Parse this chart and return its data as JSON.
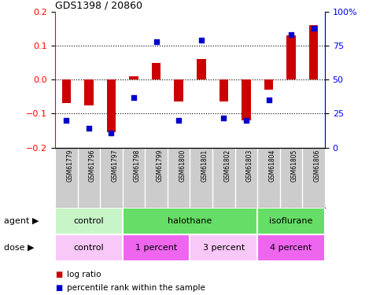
{
  "title": "GDS1398 / 20860",
  "samples": [
    "GSM61779",
    "GSM61796",
    "GSM61797",
    "GSM61798",
    "GSM61799",
    "GSM61800",
    "GSM61801",
    "GSM61802",
    "GSM61803",
    "GSM61804",
    "GSM61805",
    "GSM61806"
  ],
  "log_ratio": [
    -0.068,
    -0.075,
    -0.155,
    0.01,
    0.05,
    -0.065,
    0.06,
    -0.065,
    -0.12,
    -0.03,
    0.13,
    0.16
  ],
  "percentile_rank": [
    20,
    14,
    11,
    37,
    78,
    20,
    79,
    22,
    20,
    35,
    83,
    88
  ],
  "agent_groups": [
    {
      "label": "control",
      "start": 0,
      "end": 3,
      "color": "#c8f5c8"
    },
    {
      "label": "halothane",
      "start": 3,
      "end": 9,
      "color": "#66dd66"
    },
    {
      "label": "isoflurane",
      "start": 9,
      "end": 12,
      "color": "#66dd66"
    }
  ],
  "dose_groups": [
    {
      "label": "control",
      "start": 0,
      "end": 3,
      "color": "#f8c8f8"
    },
    {
      "label": "1 percent",
      "start": 3,
      "end": 6,
      "color": "#ee66ee"
    },
    {
      "label": "3 percent",
      "start": 6,
      "end": 9,
      "color": "#f8c8f8"
    },
    {
      "label": "4 percent",
      "start": 9,
      "end": 12,
      "color": "#ee66ee"
    }
  ],
  "bar_color": "#cc0000",
  "dot_color": "#0000cc",
  "ylim_left": [
    -0.2,
    0.2
  ],
  "yticks_left": [
    -0.2,
    -0.1,
    0.0,
    0.1,
    0.2
  ],
  "yticks_right": [
    0,
    25,
    50,
    75,
    100
  ],
  "ytick_labels_right": [
    "0",
    "25",
    "50",
    "75",
    "100%"
  ],
  "hlines": [
    -0.1,
    0.0,
    0.1
  ],
  "background_color": "#ffffff",
  "sample_bg": "#cccccc",
  "agent_label": "agent",
  "dose_label": "dose",
  "legend_log_ratio": "log ratio",
  "legend_percentile": "percentile rank within the sample",
  "bar_width": 0.4,
  "dot_size": 25
}
